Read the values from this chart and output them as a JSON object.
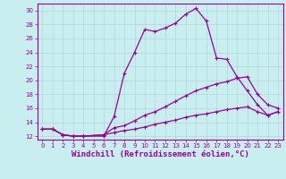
{
  "xlabel": "Windchill (Refroidissement éolien,°C)",
  "ylabel": "",
  "xlim": [
    -0.5,
    23.5
  ],
  "ylim": [
    11.5,
    31.0
  ],
  "yticks": [
    12,
    14,
    16,
    18,
    20,
    22,
    24,
    26,
    28,
    30
  ],
  "xticks": [
    0,
    1,
    2,
    3,
    4,
    5,
    6,
    7,
    8,
    9,
    10,
    11,
    12,
    13,
    14,
    15,
    16,
    17,
    18,
    19,
    20,
    21,
    22,
    23
  ],
  "bg_color": "#c8eef0",
  "grid_color": "#b0d8d8",
  "line_color": "#990099",
  "line1_x": [
    0,
    1,
    2,
    3,
    4,
    6,
    7,
    8,
    9,
    10,
    11,
    12,
    13,
    14,
    15,
    16,
    17,
    18,
    19,
    20,
    21,
    22,
    23
  ],
  "line1_y": [
    13.0,
    13.0,
    12.2,
    12.0,
    12.0,
    12.0,
    14.8,
    21.0,
    24.0,
    27.3,
    27.0,
    27.5,
    28.2,
    29.5,
    30.3,
    28.5,
    23.2,
    23.0,
    20.5,
    18.5,
    16.5,
    15.0,
    15.5
  ],
  "line2_x": [
    0,
    1,
    2,
    3,
    4,
    6,
    7,
    8,
    9,
    10,
    11,
    12,
    13,
    14,
    15,
    16,
    17,
    18,
    19,
    20,
    21,
    22,
    23
  ],
  "line2_y": [
    13.0,
    13.0,
    12.2,
    12.0,
    12.0,
    12.2,
    13.2,
    13.5,
    14.2,
    15.0,
    15.5,
    16.2,
    17.0,
    17.8,
    18.5,
    19.0,
    19.5,
    19.8,
    20.3,
    20.5,
    18.0,
    16.5,
    16.0
  ],
  "line3_x": [
    0,
    1,
    2,
    3,
    4,
    6,
    7,
    8,
    9,
    10,
    11,
    12,
    13,
    14,
    15,
    16,
    17,
    18,
    19,
    20,
    21,
    22,
    23
  ],
  "line3_y": [
    13.0,
    13.0,
    12.2,
    12.0,
    12.0,
    12.2,
    12.5,
    12.8,
    13.0,
    13.3,
    13.7,
    14.0,
    14.3,
    14.7,
    15.0,
    15.2,
    15.5,
    15.8,
    16.0,
    16.2,
    15.5,
    15.0,
    15.5
  ],
  "marker": "+",
  "markersize": 3,
  "linewidth": 0.9,
  "tick_fontsize": 5,
  "xlabel_fontsize": 6.5,
  "bg_axes": "#c8eef0"
}
